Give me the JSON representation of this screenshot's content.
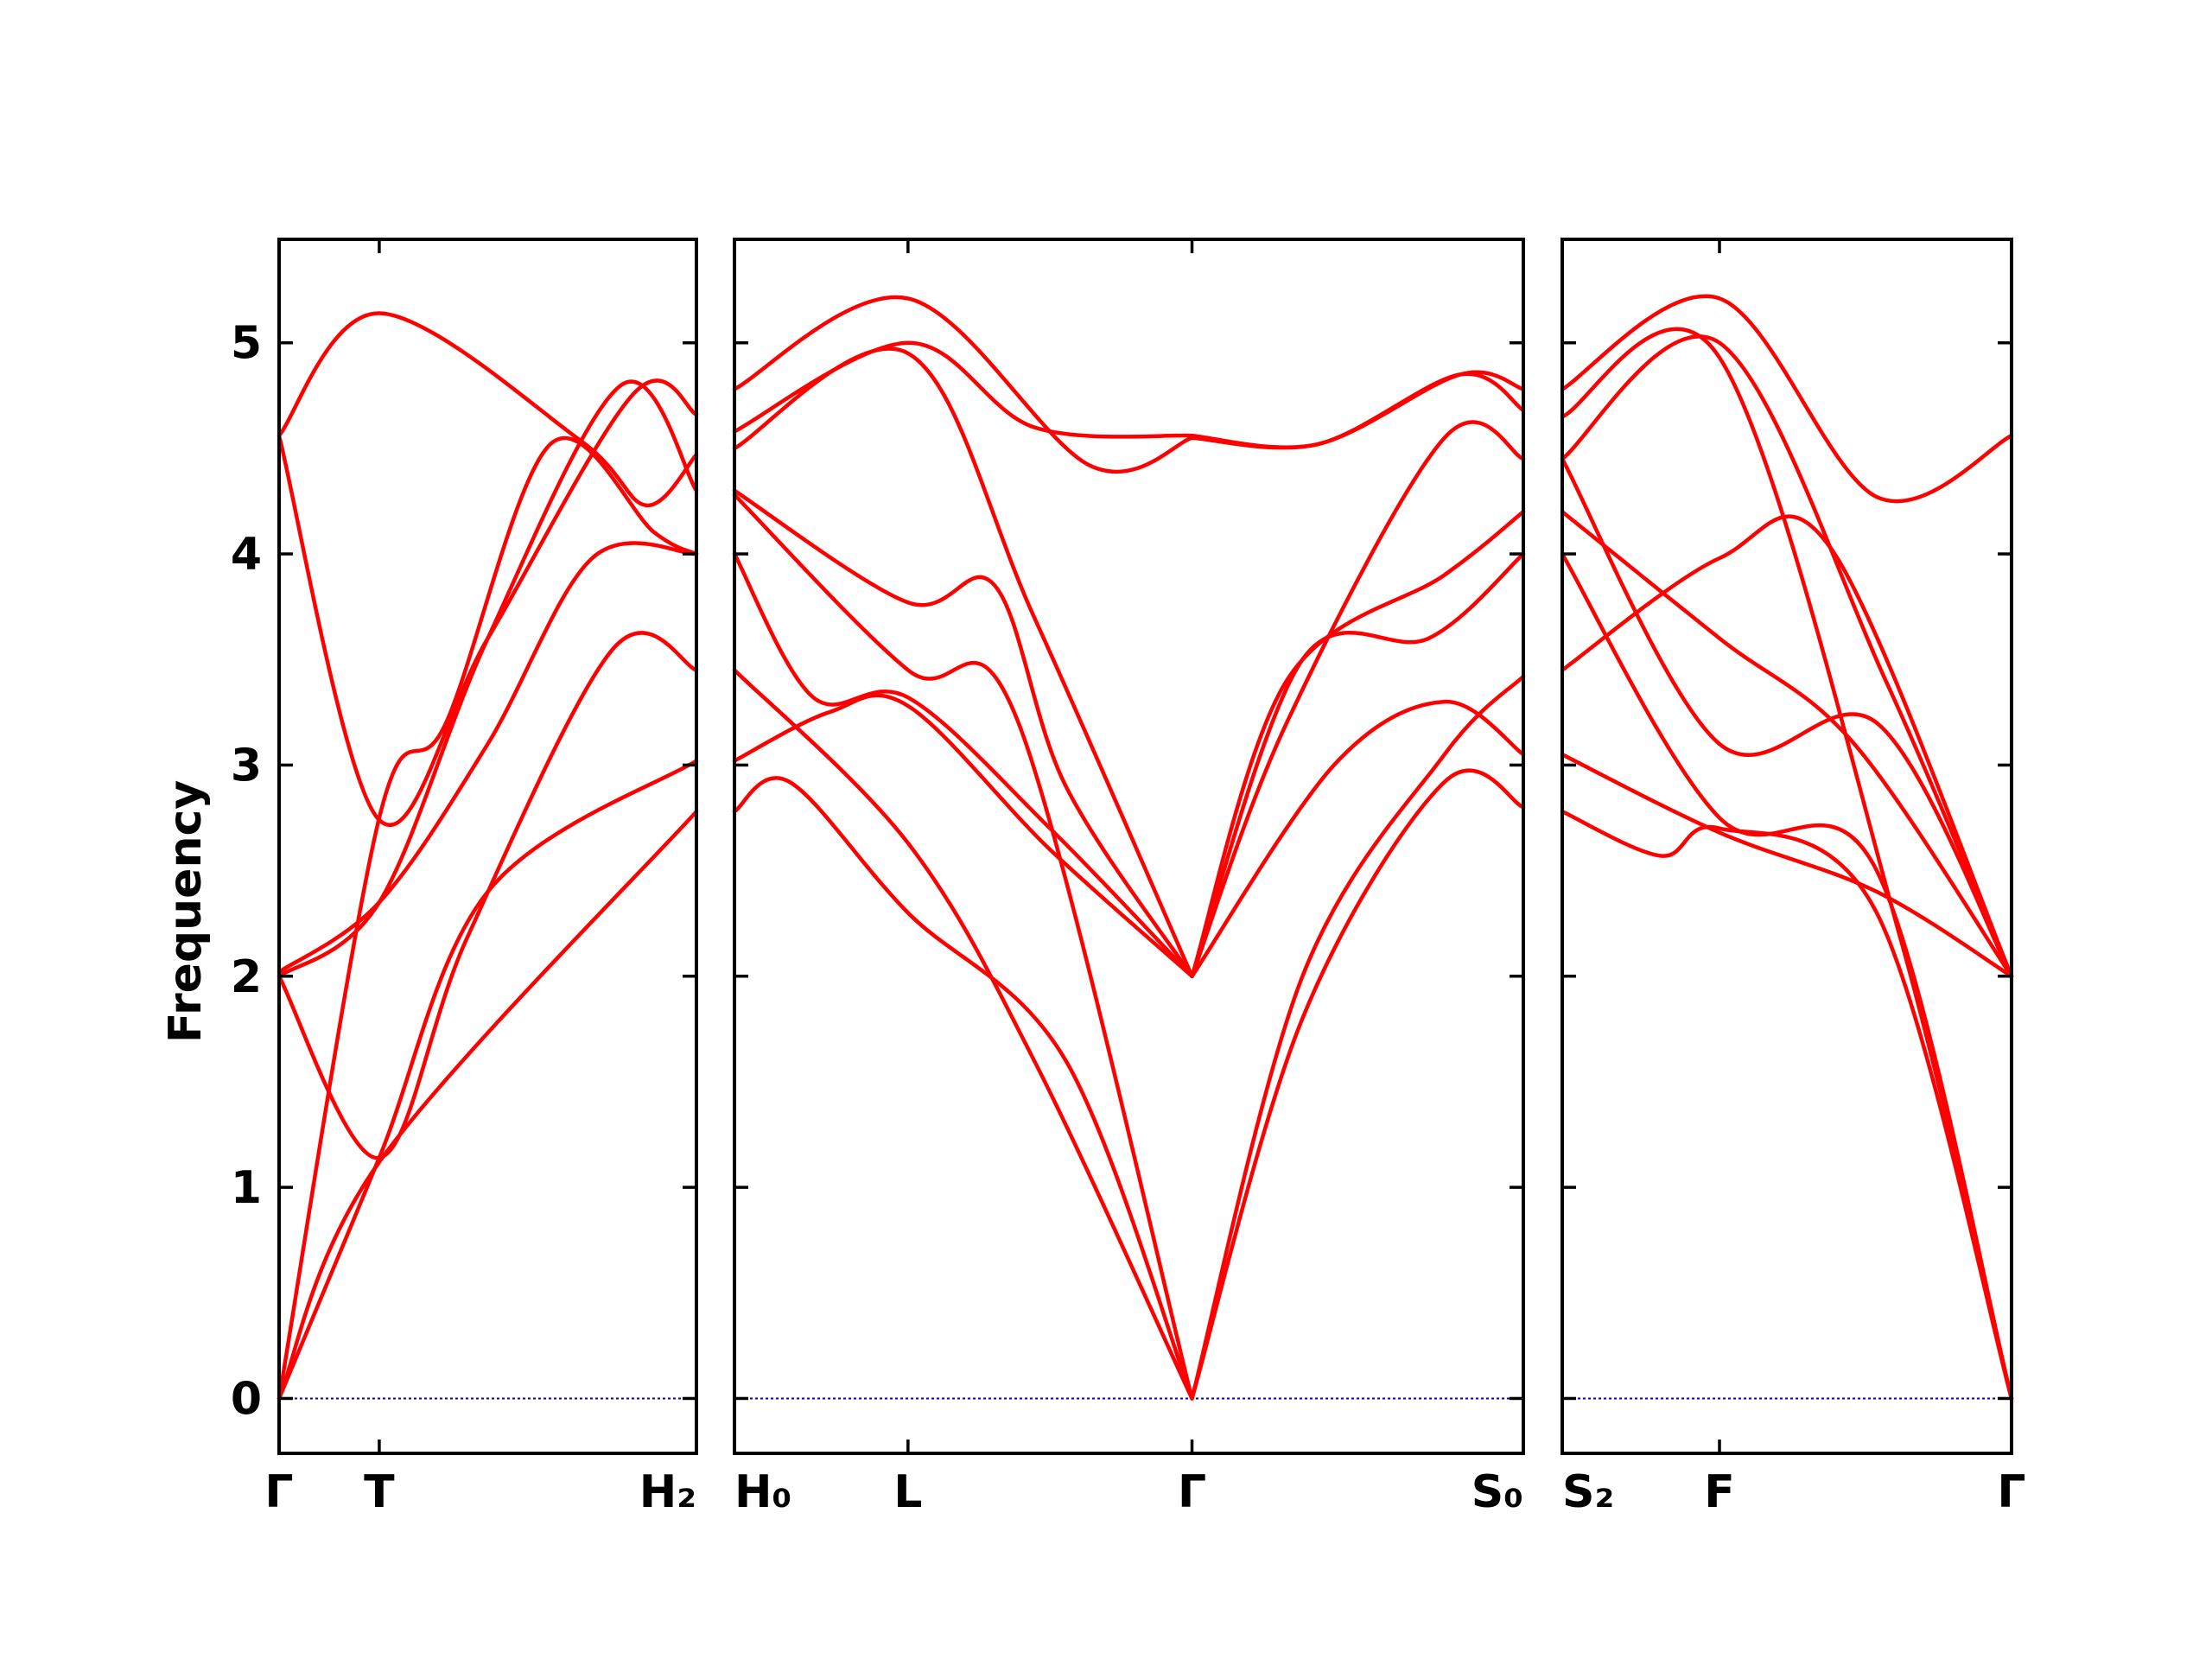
{
  "chart_data": {
    "type": "line",
    "title": "",
    "ylabel": "Frequency",
    "ylim": [
      -0.26,
      5.49
    ],
    "yticks": [
      0,
      1,
      2,
      3,
      4,
      5
    ],
    "grid": false,
    "legend": "none",
    "line_color": "#ff0000",
    "zero_line_color": "#0000cc",
    "panels": [
      {
        "id": "panel-1",
        "xlim": [
          0,
          1
        ],
        "xticks": [
          {
            "x": 0,
            "label": "Γ"
          },
          {
            "x": 0.24,
            "label": "T"
          },
          {
            "x": 1,
            "label": "H₂"
          }
        ],
        "series": [
          {
            "x": [
              0,
              0.24,
              1
            ],
            "values": [
              0,
              1.12,
              2.78
            ]
          },
          {
            "x": [
              0,
              0.24,
              0.5,
              1
            ],
            "values": [
              0,
              1.14,
              2.4,
              3.02
            ]
          },
          {
            "x": [
              0,
              0.24,
              0.45,
              0.8,
              1
            ],
            "values": [
              2.0,
              1.14,
              2.18,
              3.55,
              3.45
            ]
          },
          {
            "x": [
              0,
              0.24,
              0.4,
              0.65,
              0.9,
              1
            ],
            "values": [
              0,
              2.75,
              3.2,
              4.52,
              4.1,
              4.0
            ]
          },
          {
            "x": [
              0,
              0.24,
              0.5,
              0.75,
              1
            ],
            "values": [
              2.02,
              2.35,
              3.1,
              3.98,
              4.0
            ]
          },
          {
            "x": [
              0,
              0.24,
              0.5,
              0.85,
              1
            ],
            "values": [
              4.56,
              2.74,
              3.6,
              4.76,
              4.66
            ]
          },
          {
            "x": [
              0,
              0.24,
              0.72,
              0.88,
              1
            ],
            "values": [
              4.56,
              5.14,
              4.54,
              4.23,
              4.47
            ]
          },
          {
            "x": [
              0,
              0.24,
              0.5,
              0.82,
              1
            ],
            "values": [
              2.0,
              2.35,
              3.6,
              4.8,
              4.3
            ]
          }
        ]
      },
      {
        "id": "panel-2",
        "xlim": [
          0,
          1
        ],
        "xticks": [
          {
            "x": 0,
            "label": "H₀"
          },
          {
            "x": 0.22,
            "label": "L"
          },
          {
            "x": 0.58,
            "label": "Γ"
          },
          {
            "x": 1,
            "label": "S₀"
          }
        ],
        "series": [
          {
            "x": [
              0,
              0.07,
              0.22,
              0.42,
              0.58
            ],
            "values": [
              2.78,
              2.92,
              2.3,
              1.6,
              0.0
            ]
          },
          {
            "x": [
              0,
              0.22,
              0.38,
              0.58
            ],
            "values": [
              3.45,
              2.63,
              1.6,
              0.0
            ]
          },
          {
            "x": [
              0,
              0.1,
              0.22,
              0.4,
              0.58
            ],
            "values": [
              4.0,
              3.32,
              3.32,
              2.7,
              2.0
            ]
          },
          {
            "x": [
              0,
              0.12,
              0.22,
              0.4,
              0.58
            ],
            "values": [
              3.02,
              3.25,
              3.28,
              2.6,
              2.0
            ]
          },
          {
            "x": [
              0,
              0.22,
              0.36,
              0.58
            ],
            "values": [
              4.28,
              3.45,
              3.2,
              0.0
            ]
          },
          {
            "x": [
              0,
              0.22,
              0.33,
              0.42,
              0.58
            ],
            "values": [
              4.3,
              3.77,
              3.85,
              2.9,
              2.0
            ]
          },
          {
            "x": [
              0,
              0.22,
              0.38,
              0.58
            ],
            "values": [
              4.5,
              4.95,
              3.7,
              2.0
            ]
          },
          {
            "x": [
              0,
              0.22,
              0.38,
              0.58
            ],
            "values": [
              4.58,
              5.0,
              4.6,
              4.56
            ]
          },
          {
            "x": [
              0,
              0.22,
              0.45,
              0.58
            ],
            "values": [
              4.78,
              5.21,
              4.42,
              4.55
            ]
          },
          {
            "x": [
              0.58,
              0.74,
              0.92,
              1
            ],
            "values": [
              4.56,
              4.52,
              4.85,
              4.78
            ]
          },
          {
            "x": [
              0.58,
              0.74,
              0.92,
              1
            ],
            "values": [
              4.55,
              4.52,
              4.85,
              4.68
            ]
          },
          {
            "x": [
              0.58,
              0.72,
              0.9,
              1
            ],
            "values": [
              0.0,
              2.0,
              3.05,
              3.42
            ]
          },
          {
            "x": [
              0.58,
              0.72,
              0.9,
              1
            ],
            "values": [
              0.0,
              1.8,
              2.92,
              2.8
            ]
          },
          {
            "x": [
              0.58,
              0.7,
              0.9,
              1
            ],
            "values": [
              2.0,
              3.2,
              4.55,
              4.45
            ]
          },
          {
            "x": [
              0.58,
              0.7,
              0.9,
              1
            ],
            "values": [
              2.0,
              3.4,
              3.9,
              4.2
            ]
          },
          {
            "x": [
              0.58,
              0.76,
              0.9,
              1
            ],
            "values": [
              2.0,
              3.0,
              3.3,
              3.05
            ]
          },
          {
            "x": [
              0.58,
              0.72,
              0.88,
              1
            ],
            "values": [
              2.0,
              3.5,
              3.6,
              4.0
            ]
          }
        ]
      },
      {
        "id": "panel-3",
        "xlim": [
          0,
          1
        ],
        "xticks": [
          {
            "x": 0,
            "label": "S₂"
          },
          {
            "x": 0.35,
            "label": "F"
          },
          {
            "x": 1,
            "label": "Γ"
          }
        ],
        "series": [
          {
            "x": [
              0,
              0.35,
              0.6,
              1
            ],
            "values": [
              3.45,
              3.98,
              4.02,
              2.0
            ]
          },
          {
            "x": [
              0,
              0.35,
              0.7,
              1
            ],
            "values": [
              4.0,
              2.75,
              2.5,
              0.0
            ]
          },
          {
            "x": [
              0,
              0.35,
              0.65,
              1
            ],
            "values": [
              4.2,
              3.6,
              3.1,
              2.0
            ]
          },
          {
            "x": [
              0,
              0.35,
              0.7,
              1
            ],
            "values": [
              4.45,
              3.1,
              3.2,
              2.0
            ]
          },
          {
            "x": [
              0,
              0.35,
              0.7,
              1
            ],
            "values": [
              3.05,
              2.68,
              2.4,
              2.0
            ]
          },
          {
            "x": [
              0,
              0.22,
              0.35,
              0.7,
              1
            ],
            "values": [
              2.78,
              2.57,
              2.7,
              2.3,
              0.0
            ]
          },
          {
            "x": [
              0,
              0.35,
              0.75,
              1
            ],
            "values": [
              4.65,
              4.93,
              2.2,
              0.0
            ]
          },
          {
            "x": [
              0,
              0.35,
              0.72,
              1
            ],
            "values": [
              4.45,
              5.0,
              3.4,
              2.0
            ]
          },
          {
            "x": [
              0,
              0.35,
              0.7,
              1
            ],
            "values": [
              4.78,
              5.21,
              4.27,
              4.56
            ]
          }
        ]
      }
    ]
  }
}
